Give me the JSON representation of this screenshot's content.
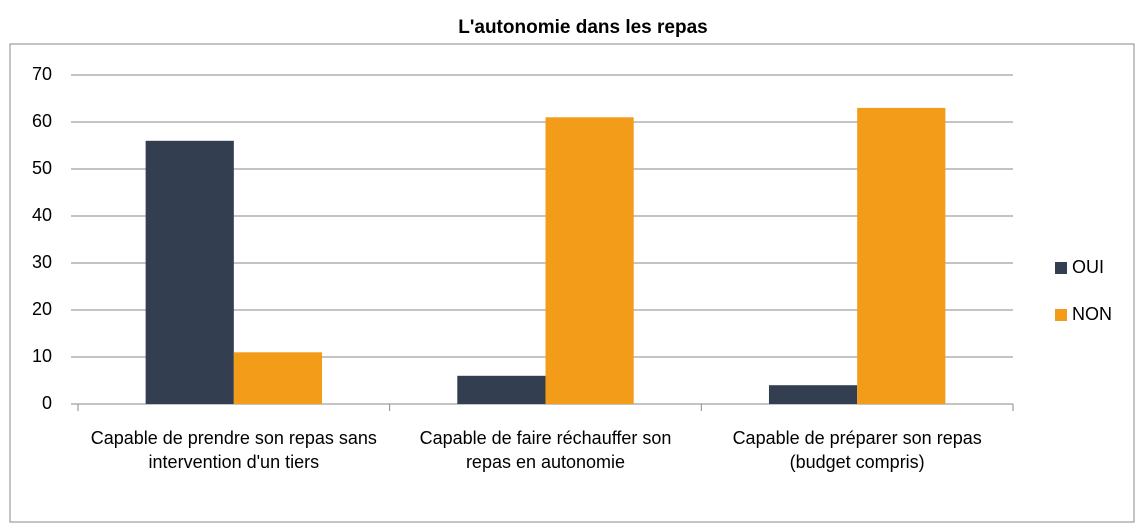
{
  "chart_data": {
    "type": "bar",
    "title": "L'autonomie dans les repas",
    "categories": [
      "Capable de prendre son repas sans intervention d'un tiers",
      "Capable de faire réchauffer son repas en autonomie",
      "Capable de préparer son repas (budget compris)"
    ],
    "series": [
      {
        "name": "OUI",
        "color": "#333f50",
        "values": [
          56,
          6,
          4
        ]
      },
      {
        "name": "NON",
        "color": "#f39c1a",
        "values": [
          11,
          61,
          63
        ]
      }
    ],
    "ylim": [
      0,
      70
    ],
    "yticks": [
      0,
      10,
      20,
      30,
      40,
      50,
      60,
      70
    ],
    "grid": true,
    "legend": "right"
  }
}
